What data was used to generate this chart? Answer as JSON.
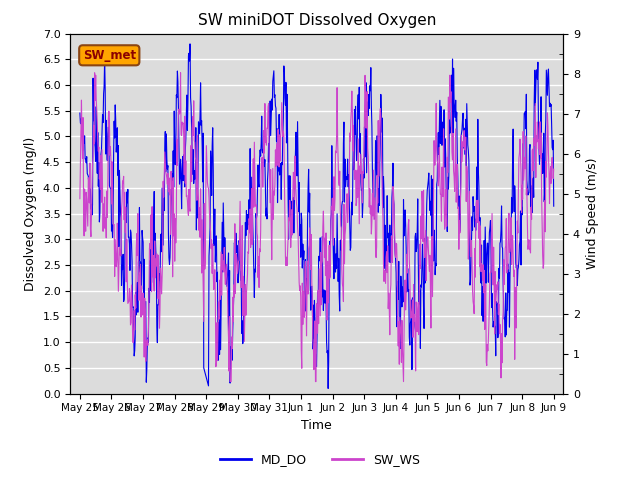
{
  "title": "SW miniDOT Dissolved Oxygen",
  "ylabel_left": "Dissolved Oxygen (mg/l)",
  "ylabel_right": "Wind Speed (m/s)",
  "xlabel": "Time",
  "ylim_left": [
    0.0,
    7.0
  ],
  "ylim_right": [
    0.0,
    9.0
  ],
  "color_do": "#0000EE",
  "color_ws": "#CC44CC",
  "legend_do": "MD_DO",
  "legend_ws": "SW_WS",
  "annotation_text": "SW_met",
  "annotation_bg": "#FFA500",
  "annotation_fc": "#8B0000",
  "bg_color": "#DCDCDC",
  "xtick_labels": [
    "May 25",
    "May 26",
    "May 27",
    "May 28",
    "May 29",
    "May 30",
    "May 31",
    "Jun 1",
    "Jun 2",
    "Jun 3",
    "Jun 4",
    "Jun 5",
    "Jun 6",
    "Jun 7",
    "Jun 8",
    "Jun 9"
  ],
  "xtick_positions": [
    0,
    1,
    2,
    3,
    4,
    5,
    6,
    7,
    8,
    9,
    10,
    11,
    12,
    13,
    14,
    15
  ]
}
